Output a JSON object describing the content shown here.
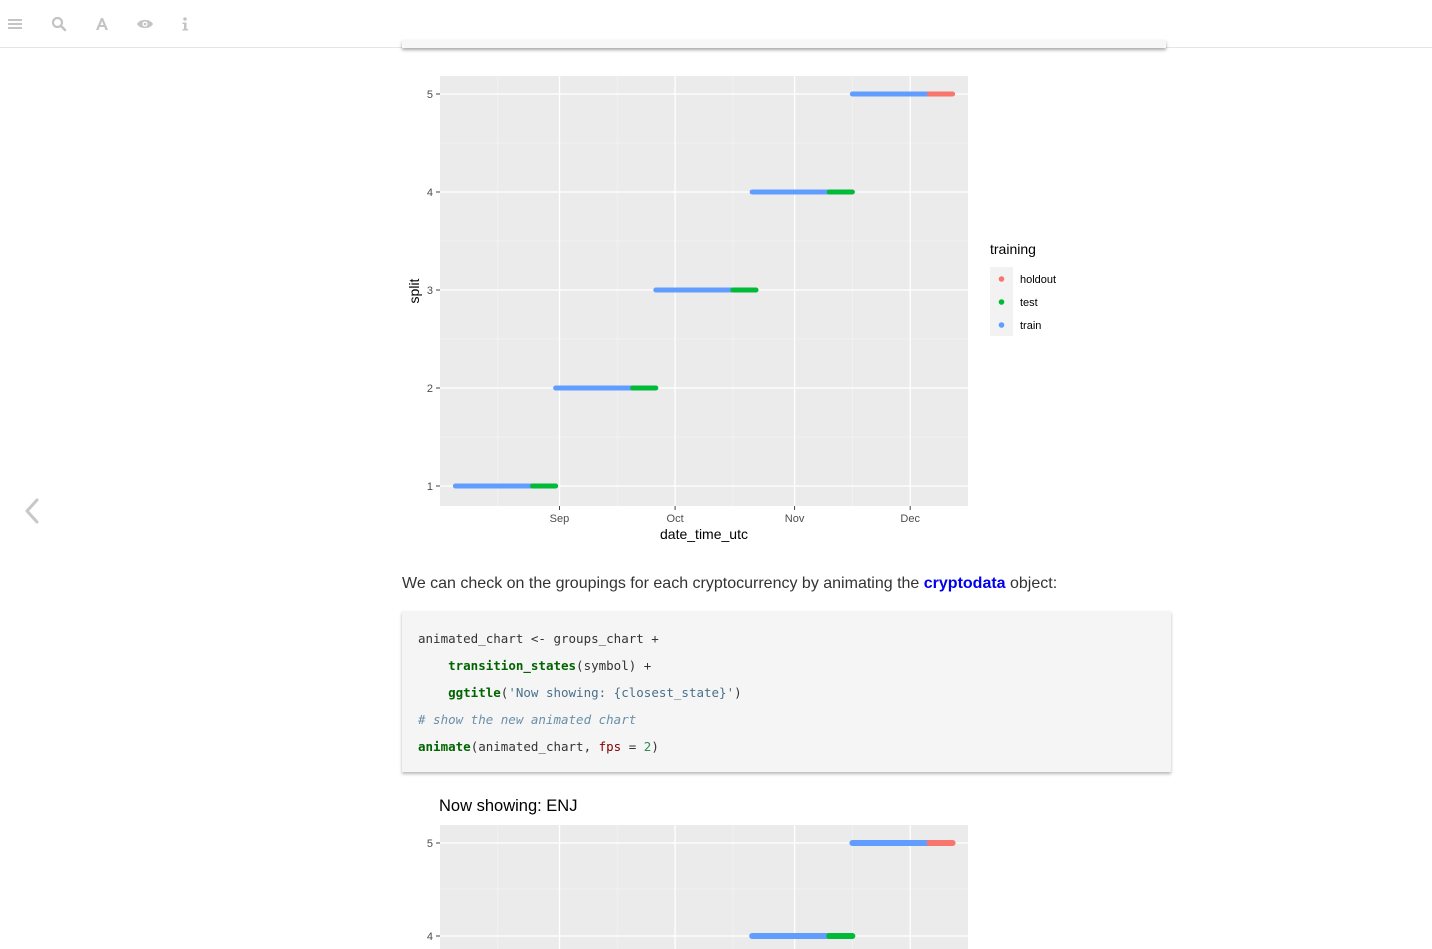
{
  "toolbar": {
    "icons": [
      "menu-icon",
      "search-icon",
      "font-icon",
      "eye-icon",
      "info-icon"
    ]
  },
  "colors": {
    "holdout": "#f8766d",
    "test": "#00ba38",
    "train": "#619cff",
    "panel": "#ebebeb",
    "link": "#0000ee"
  },
  "chart_data": [
    {
      "type": "line",
      "title": "",
      "xlabel": "date_time_utc",
      "ylabel": "split",
      "x_ticks": [
        "Sep",
        "Oct",
        "Nov",
        "Dec"
      ],
      "y_ticks": [
        "1",
        "2",
        "3",
        "4",
        "5"
      ],
      "legend": {
        "title": "training",
        "entries": [
          "holdout",
          "test",
          "train"
        ],
        "placement": "right"
      },
      "grid": true,
      "segments": [
        {
          "split": 1,
          "train": [
            "2018-08-05",
            "2018-08-25"
          ],
          "test": [
            "2018-08-25",
            "2018-08-31"
          ]
        },
        {
          "split": 2,
          "train": [
            "2018-08-31",
            "2018-09-20"
          ],
          "test": [
            "2018-09-20",
            "2018-09-26"
          ]
        },
        {
          "split": 3,
          "train": [
            "2018-09-26",
            "2018-10-16"
          ],
          "test": [
            "2018-10-16",
            "2018-10-22"
          ]
        },
        {
          "split": 4,
          "train": [
            "2018-10-21",
            "2018-11-10"
          ],
          "test": [
            "2018-11-10",
            "2018-11-16"
          ]
        },
        {
          "split": 5,
          "train": [
            "2018-11-16",
            "2018-12-06"
          ],
          "holdout": [
            "2018-12-06",
            "2018-12-12"
          ]
        }
      ]
    },
    {
      "type": "line",
      "title": "Now showing: ENJ",
      "y_ticks": [
        "4",
        "5"
      ],
      "segments": [
        {
          "split": 5,
          "train": [
            "2018-11-16",
            "2018-12-06"
          ],
          "holdout": [
            "2018-12-06",
            "2018-12-12"
          ]
        },
        {
          "split": 4,
          "train": [
            "2018-10-21",
            "2018-11-10"
          ],
          "test": [
            "2018-11-10",
            "2018-11-16"
          ]
        }
      ]
    }
  ],
  "text": {
    "para_before": "We can check on the groupings for each cryptocurrency by animating the ",
    "para_link": "cryptodata",
    "para_after": " object:"
  },
  "code": {
    "l1": "animated_chart <- groups_chart +",
    "l2_fn": "transition_states",
    "l2_rest": "(symbol) +",
    "l3_fn": "ggtitle",
    "l3_open": "(",
    "l3_str": "'Now showing: {closest_state}'",
    "l3_close": ")",
    "l4": "# show the new animated chart",
    "l5_fn": "animate",
    "l5_a": "(animated_chart, ",
    "l5_arg": "fps",
    "l5_b": " = ",
    "l5_num": "2",
    "l5_c": ")"
  }
}
